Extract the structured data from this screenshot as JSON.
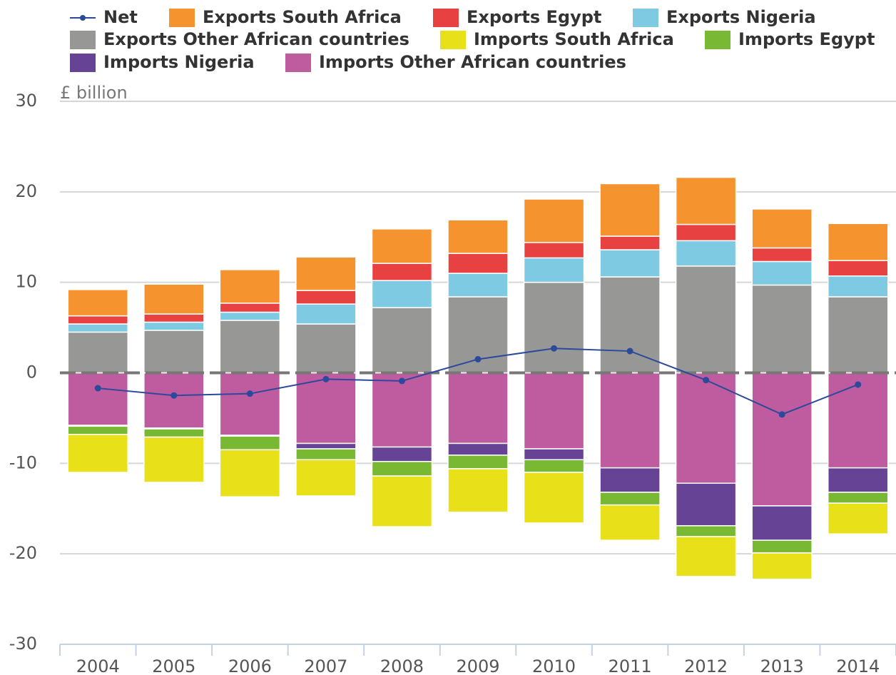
{
  "chart_data": {
    "type": "bar",
    "stacked": true,
    "y_label": "£ billion",
    "categories": [
      "2004",
      "2005",
      "2006",
      "2007",
      "2008",
      "2009",
      "2010",
      "2011",
      "2012",
      "2013",
      "2014"
    ],
    "series": [
      {
        "name": "Net",
        "type": "line",
        "color": "#2b4a9b",
        "values": [
          -1.7,
          -2.5,
          -2.3,
          -0.7,
          -0.9,
          1.5,
          2.7,
          2.4,
          -0.8,
          -4.6,
          -1.3
        ]
      },
      {
        "name": "Exports South Africa",
        "color": "#f5942f",
        "values": [
          2.9,
          3.3,
          3.7,
          3.7,
          3.8,
          3.7,
          4.8,
          5.8,
          5.2,
          4.3,
          4.1
        ]
      },
      {
        "name": "Exports Egypt",
        "color": "#e84142",
        "values": [
          0.9,
          0.9,
          1.0,
          1.5,
          1.9,
          2.2,
          1.7,
          1.5,
          1.8,
          1.5,
          1.7
        ]
      },
      {
        "name": "Exports Nigeria",
        "color": "#7ecae3",
        "values": [
          0.9,
          0.9,
          0.9,
          2.2,
          3.0,
          2.6,
          2.7,
          3.0,
          2.8,
          2.6,
          2.3
        ]
      },
      {
        "name": "Exports Other African countries",
        "color": "#979796",
        "values": [
          4.5,
          4.7,
          5.8,
          5.4,
          7.2,
          8.4,
          10.0,
          10.6,
          11.8,
          9.7,
          8.4
        ]
      },
      {
        "name": "Imports South Africa",
        "color": "#e8e11a",
        "values": [
          -4.2,
          -5.0,
          -5.2,
          -4.0,
          -5.6,
          -4.8,
          -5.6,
          -3.9,
          -4.4,
          -2.9,
          -3.4
        ]
      },
      {
        "name": "Imports Egypt",
        "color": "#78b833",
        "values": [
          -0.9,
          -0.9,
          -1.5,
          -1.2,
          -1.6,
          -1.5,
          -1.4,
          -1.4,
          -1.2,
          -1.4,
          -1.2
        ]
      },
      {
        "name": "Imports Nigeria",
        "color": "#674396",
        "values": [
          -0.1,
          -0.1,
          -0.1,
          -0.6,
          -1.6,
          -1.3,
          -1.2,
          -2.7,
          -4.7,
          -3.8,
          -2.7
        ]
      },
      {
        "name": "Imports Other African countries",
        "color": "#bf5b9f",
        "values": [
          -5.8,
          -6.1,
          -6.9,
          -7.8,
          -8.2,
          -7.8,
          -8.4,
          -10.5,
          -12.2,
          -14.7,
          -10.5
        ]
      }
    ],
    "ylim": [
      -30,
      30
    ],
    "yticks": [
      -30,
      -20,
      -10,
      0,
      10,
      20,
      30
    ],
    "grid": true,
    "legend": "top"
  }
}
